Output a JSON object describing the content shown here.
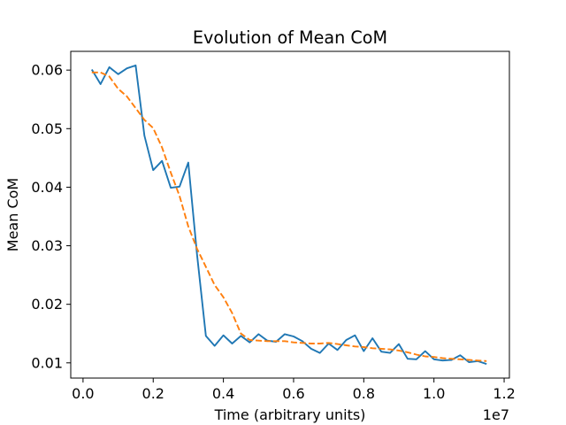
{
  "chart_data": {
    "type": "line",
    "title": "Evolution of Mean CoM",
    "xlabel": "Time (arbitrary units)",
    "ylabel": "Mean CoM",
    "x_offset_label": "1e7",
    "xlim": [
      -0.035,
      1.215
    ],
    "ylim": [
      0.0074,
      0.0632
    ],
    "x_ticks": [
      0.0,
      0.2,
      0.4,
      0.6,
      0.8,
      1.0,
      1.2
    ],
    "x_tick_labels": [
      "0.0",
      "0.2",
      "0.4",
      "0.6",
      "0.8",
      "1.0",
      "1.2"
    ],
    "y_ticks": [
      0.01,
      0.02,
      0.03,
      0.04,
      0.05,
      0.06
    ],
    "y_tick_labels": [
      "0.01",
      "0.02",
      "0.03",
      "0.04",
      "0.05",
      "0.06"
    ],
    "grid": false,
    "legend": "none",
    "series": [
      {
        "color": "#1f77b4",
        "style": "solid",
        "points": [
          [
            0.025,
            0.0601
          ],
          [
            0.05,
            0.0576
          ],
          [
            0.075,
            0.0605
          ],
          [
            0.1,
            0.0593
          ],
          [
            0.125,
            0.0603
          ],
          [
            0.15,
            0.0608
          ],
          [
            0.175,
            0.0488
          ],
          [
            0.2,
            0.0429
          ],
          [
            0.225,
            0.0445
          ],
          [
            0.25,
            0.0399
          ],
          [
            0.275,
            0.0401
          ],
          [
            0.3,
            0.0442
          ],
          [
            0.325,
            0.0285
          ],
          [
            0.35,
            0.0146
          ],
          [
            0.375,
            0.0129
          ],
          [
            0.4,
            0.0147
          ],
          [
            0.425,
            0.0133
          ],
          [
            0.45,
            0.0146
          ],
          [
            0.475,
            0.0135
          ],
          [
            0.5,
            0.0149
          ],
          [
            0.525,
            0.0138
          ],
          [
            0.55,
            0.0136
          ],
          [
            0.575,
            0.0149
          ],
          [
            0.6,
            0.0145
          ],
          [
            0.625,
            0.0137
          ],
          [
            0.65,
            0.0124
          ],
          [
            0.675,
            0.0117
          ],
          [
            0.7,
            0.0133
          ],
          [
            0.725,
            0.0122
          ],
          [
            0.75,
            0.0139
          ],
          [
            0.775,
            0.0147
          ],
          [
            0.8,
            0.012
          ],
          [
            0.825,
            0.0142
          ],
          [
            0.85,
            0.0119
          ],
          [
            0.875,
            0.0117
          ],
          [
            0.9,
            0.0132
          ],
          [
            0.925,
            0.0107
          ],
          [
            0.95,
            0.0106
          ],
          [
            0.975,
            0.012
          ],
          [
            1.0,
            0.0106
          ],
          [
            1.025,
            0.0104
          ],
          [
            1.05,
            0.0105
          ],
          [
            1.075,
            0.0113
          ],
          [
            1.1,
            0.0101
          ],
          [
            1.125,
            0.0103
          ],
          [
            1.15,
            0.0098
          ]
        ]
      },
      {
        "color": "#ff7f0e",
        "style": "dashed",
        "points": [
          [
            0.025,
            0.0596
          ],
          [
            0.05,
            0.0596
          ],
          [
            0.075,
            0.0589
          ],
          [
            0.1,
            0.0568
          ],
          [
            0.125,
            0.0555
          ],
          [
            0.15,
            0.0535
          ],
          [
            0.175,
            0.0515
          ],
          [
            0.2,
            0.0501
          ],
          [
            0.225,
            0.0468
          ],
          [
            0.25,
            0.0425
          ],
          [
            0.275,
            0.0385
          ],
          [
            0.3,
            0.0333
          ],
          [
            0.325,
            0.0295
          ],
          [
            0.35,
            0.0264
          ],
          [
            0.375,
            0.0233
          ],
          [
            0.4,
            0.0212
          ],
          [
            0.425,
            0.0185
          ],
          [
            0.45,
            0.015
          ],
          [
            0.475,
            0.0139
          ],
          [
            0.5,
            0.0138
          ],
          [
            0.525,
            0.0137
          ],
          [
            0.55,
            0.0137
          ],
          [
            0.575,
            0.0137
          ],
          [
            0.6,
            0.0135
          ],
          [
            0.625,
            0.0134
          ],
          [
            0.65,
            0.0133
          ],
          [
            0.675,
            0.0133
          ],
          [
            0.7,
            0.0134
          ],
          [
            0.725,
            0.0132
          ],
          [
            0.75,
            0.013
          ],
          [
            0.775,
            0.0128
          ],
          [
            0.8,
            0.0127
          ],
          [
            0.825,
            0.0125
          ],
          [
            0.85,
            0.0124
          ],
          [
            0.875,
            0.0123
          ],
          [
            0.9,
            0.0121
          ],
          [
            0.925,
            0.0118
          ],
          [
            0.95,
            0.0114
          ],
          [
            0.975,
            0.0111
          ],
          [
            1.0,
            0.011
          ],
          [
            1.025,
            0.0108
          ],
          [
            1.05,
            0.0107
          ],
          [
            1.075,
            0.0106
          ],
          [
            1.1,
            0.0105
          ],
          [
            1.125,
            0.0104
          ],
          [
            1.15,
            0.0103
          ]
        ]
      }
    ]
  }
}
